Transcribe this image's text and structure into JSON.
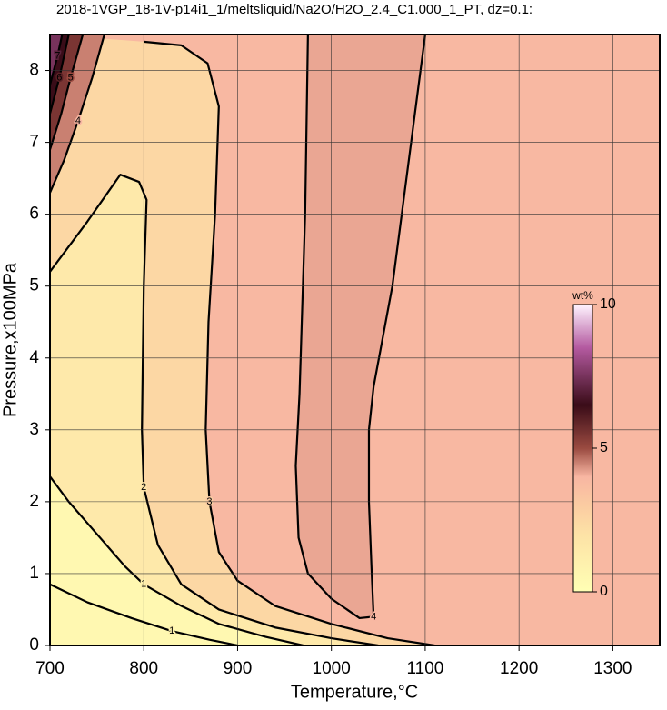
{
  "chart_data": {
    "type": "contour",
    "title": "2018-1VGP_18-1V-p14i1_1/meltsliquid/Na2O/H2O_2.4_C1.000_1_PT, dz=0.1:",
    "xlabel": "Temperature,°C",
    "ylabel": "Pressure,x100MPa",
    "xlim": [
      700,
      1350
    ],
    "ylim": [
      0,
      8.5
    ],
    "xticks": [
      700,
      800,
      900,
      1000,
      1100,
      1200,
      1300
    ],
    "yticks": [
      0,
      1,
      2,
      3,
      4,
      5,
      6,
      7,
      8
    ],
    "grid": true,
    "colorbar": {
      "label": "wt%",
      "lim": [
        0,
        10
      ],
      "ticks": [
        0,
        5,
        10
      ]
    },
    "colormap": [
      [
        0,
        "#ffffb4"
      ],
      [
        2,
        "#fde2a6"
      ],
      [
        3,
        "#fbcca2"
      ],
      [
        4,
        "#f8b6a2"
      ],
      [
        5,
        "#9a4a40"
      ],
      [
        6.5,
        "#3a0c18"
      ],
      [
        8.5,
        "#b45aa0"
      ],
      [
        10,
        "#fff4ff"
      ]
    ],
    "contours": [
      {
        "level": 3,
        "points": [
          [
            800,
            8.4
          ],
          [
            840,
            8.35
          ],
          [
            868,
            8.1
          ],
          [
            880,
            7.5
          ],
          [
            876,
            6.0
          ],
          [
            869,
            4.5
          ],
          [
            866,
            3.0
          ],
          [
            870,
            2.0
          ],
          [
            880,
            1.3
          ],
          [
            900,
            0.9
          ],
          [
            940,
            0.55
          ],
          [
            1000,
            0.3
          ],
          [
            1060,
            0.1
          ],
          [
            1110,
            0
          ]
        ]
      },
      {
        "level": 2,
        "points": [
          [
            700,
            5.2
          ],
          [
            740,
            5.9
          ],
          [
            775,
            6.55
          ],
          [
            795,
            6.45
          ],
          [
            803,
            6.2
          ],
          [
            800,
            5.0
          ],
          [
            798,
            3.0
          ],
          [
            800,
            2.2
          ],
          [
            815,
            1.4
          ],
          [
            840,
            0.85
          ],
          [
            880,
            0.5
          ],
          [
            940,
            0.25
          ],
          [
            1000,
            0.1
          ],
          [
            1050,
            0
          ]
        ]
      },
      {
        "level": 1,
        "points": [
          [
            700,
            2.35
          ],
          [
            720,
            2.0
          ],
          [
            750,
            1.55
          ],
          [
            780,
            1.1
          ],
          [
            800,
            0.85
          ],
          [
            840,
            0.55
          ],
          [
            880,
            0.3
          ],
          [
            930,
            0.12
          ],
          [
            970,
            0
          ]
        ]
      },
      {
        "level": 1,
        "points": [
          [
            700,
            0.85
          ],
          [
            740,
            0.6
          ],
          [
            787,
            0.38
          ],
          [
            830,
            0.2
          ],
          [
            870,
            0.08
          ],
          [
            900,
            0
          ]
        ]
      },
      {
        "level": 4,
        "points": [
          [
            975,
            8.5
          ],
          [
            972,
            6.0
          ],
          [
            966,
            3.5
          ],
          [
            962,
            2.5
          ],
          [
            965,
            1.5
          ],
          [
            975,
            1.0
          ],
          [
            1000,
            0.65
          ],
          [
            1030,
            0.38
          ],
          [
            1045,
            0.4
          ],
          [
            1043,
            1.0
          ],
          [
            1040,
            2.0
          ],
          [
            1040,
            3.0
          ],
          [
            1045,
            3.6
          ],
          [
            1065,
            5.0
          ],
          [
            1085,
            7.0
          ],
          [
            1100,
            8.5
          ]
        ]
      },
      {
        "level": 4,
        "points": [
          [
            700,
            6.3
          ],
          [
            715,
            6.75
          ],
          [
            730,
            7.3
          ],
          [
            745,
            7.9
          ],
          [
            758,
            8.5
          ]
        ]
      },
      {
        "level": 5,
        "points": [
          [
            700,
            6.9
          ],
          [
            712,
            7.4
          ],
          [
            722,
            7.9
          ],
          [
            735,
            8.5
          ]
        ]
      },
      {
        "level": 6,
        "points": [
          [
            700,
            7.4
          ],
          [
            710,
            7.9
          ],
          [
            720,
            8.5
          ]
        ]
      },
      {
        "level": 7,
        "points": [
          [
            700,
            7.8
          ],
          [
            708,
            8.2
          ],
          [
            713,
            8.5
          ]
        ]
      }
    ]
  }
}
